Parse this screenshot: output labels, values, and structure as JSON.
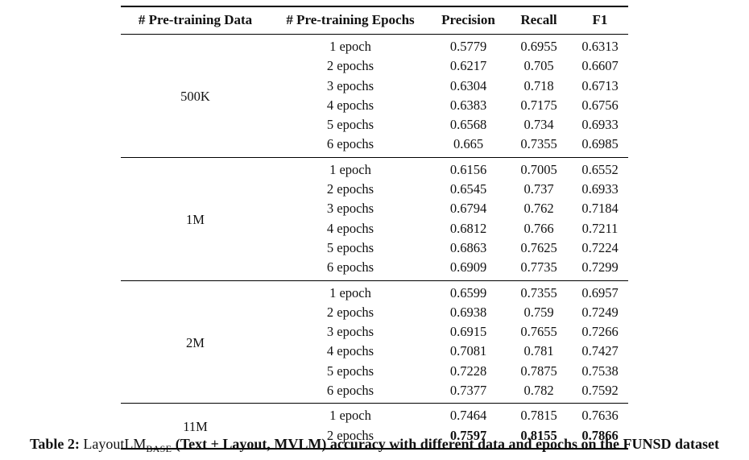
{
  "table": {
    "headers": [
      "# Pre-training Data",
      "# Pre-training Epochs",
      "Precision",
      "Recall",
      "F1"
    ],
    "groups": [
      {
        "data_size": "500K",
        "rows": [
          {
            "epochs": "1 epoch",
            "precision": "0.5779",
            "recall": "0.6955",
            "f1": "0.6313",
            "bold": false
          },
          {
            "epochs": "2 epochs",
            "precision": "0.6217",
            "recall": "0.705",
            "f1": "0.6607",
            "bold": false
          },
          {
            "epochs": "3 epochs",
            "precision": "0.6304",
            "recall": "0.718",
            "f1": "0.6713",
            "bold": false
          },
          {
            "epochs": "4 epochs",
            "precision": "0.6383",
            "recall": "0.7175",
            "f1": "0.6756",
            "bold": false
          },
          {
            "epochs": "5 epochs",
            "precision": "0.6568",
            "recall": "0.734",
            "f1": "0.6933",
            "bold": false
          },
          {
            "epochs": "6 epochs",
            "precision": "0.665",
            "recall": "0.7355",
            "f1": "0.6985",
            "bold": false
          }
        ]
      },
      {
        "data_size": "1M",
        "rows": [
          {
            "epochs": "1 epoch",
            "precision": "0.6156",
            "recall": "0.7005",
            "f1": "0.6552",
            "bold": false
          },
          {
            "epochs": "2 epochs",
            "precision": "0.6545",
            "recall": "0.737",
            "f1": "0.6933",
            "bold": false
          },
          {
            "epochs": "3 epochs",
            "precision": "0.6794",
            "recall": "0.762",
            "f1": "0.7184",
            "bold": false
          },
          {
            "epochs": "4 epochs",
            "precision": "0.6812",
            "recall": "0.766",
            "f1": "0.7211",
            "bold": false
          },
          {
            "epochs": "5 epochs",
            "precision": "0.6863",
            "recall": "0.7625",
            "f1": "0.7224",
            "bold": false
          },
          {
            "epochs": "6 epochs",
            "precision": "0.6909",
            "recall": "0.7735",
            "f1": "0.7299",
            "bold": false
          }
        ]
      },
      {
        "data_size": "2M",
        "rows": [
          {
            "epochs": "1 epoch",
            "precision": "0.6599",
            "recall": "0.7355",
            "f1": "0.6957",
            "bold": false
          },
          {
            "epochs": "2 epochs",
            "precision": "0.6938",
            "recall": "0.759",
            "f1": "0.7249",
            "bold": false
          },
          {
            "epochs": "3 epochs",
            "precision": "0.6915",
            "recall": "0.7655",
            "f1": "0.7266",
            "bold": false
          },
          {
            "epochs": "4 epochs",
            "precision": "0.7081",
            "recall": "0.781",
            "f1": "0.7427",
            "bold": false
          },
          {
            "epochs": "5 epochs",
            "precision": "0.7228",
            "recall": "0.7875",
            "f1": "0.7538",
            "bold": false
          },
          {
            "epochs": "6 epochs",
            "precision": "0.7377",
            "recall": "0.782",
            "f1": "0.7592",
            "bold": false
          }
        ]
      },
      {
        "data_size": "11M",
        "rows": [
          {
            "epochs": "1 epoch",
            "precision": "0.7464",
            "recall": "0.7815",
            "f1": "0.7636",
            "bold": false
          },
          {
            "epochs": "2 epochs",
            "precision": "0.7597",
            "recall": "0.8155",
            "f1": "0.7866",
            "bold": true
          }
        ]
      }
    ]
  },
  "caption": {
    "label": "Table 2:",
    "model": "LayoutLM",
    "model_subscript": "BASE",
    "text": "(Text + Layout, MVLM) accuracy with different data and epochs on the FUNSD dataset"
  }
}
